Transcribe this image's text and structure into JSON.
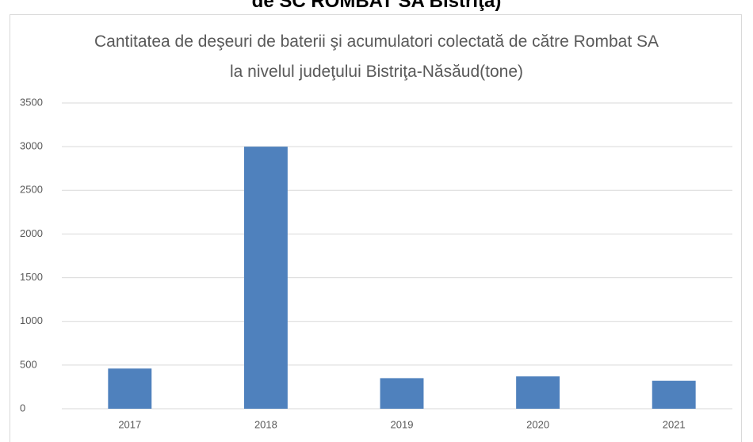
{
  "header": {
    "text": "de SC ROMBAT SA Bistriţa)"
  },
  "chart_data": {
    "type": "bar",
    "title": "Cantitatea de deşeuri de baterii şi acumulatori colectată de către Rombat SA la nivelul judeţului Bistriţa-Năsăud(tone)",
    "categories": [
      "2017",
      "2018",
      "2019",
      "2020",
      "2021"
    ],
    "values": [
      460,
      3000,
      350,
      370,
      320
    ],
    "color": "#4f81bd",
    "ylim": [
      0,
      3500
    ],
    "yticks": [
      0,
      500,
      1000,
      1500,
      2000,
      2500,
      3000,
      3500
    ],
    "grid": true
  }
}
